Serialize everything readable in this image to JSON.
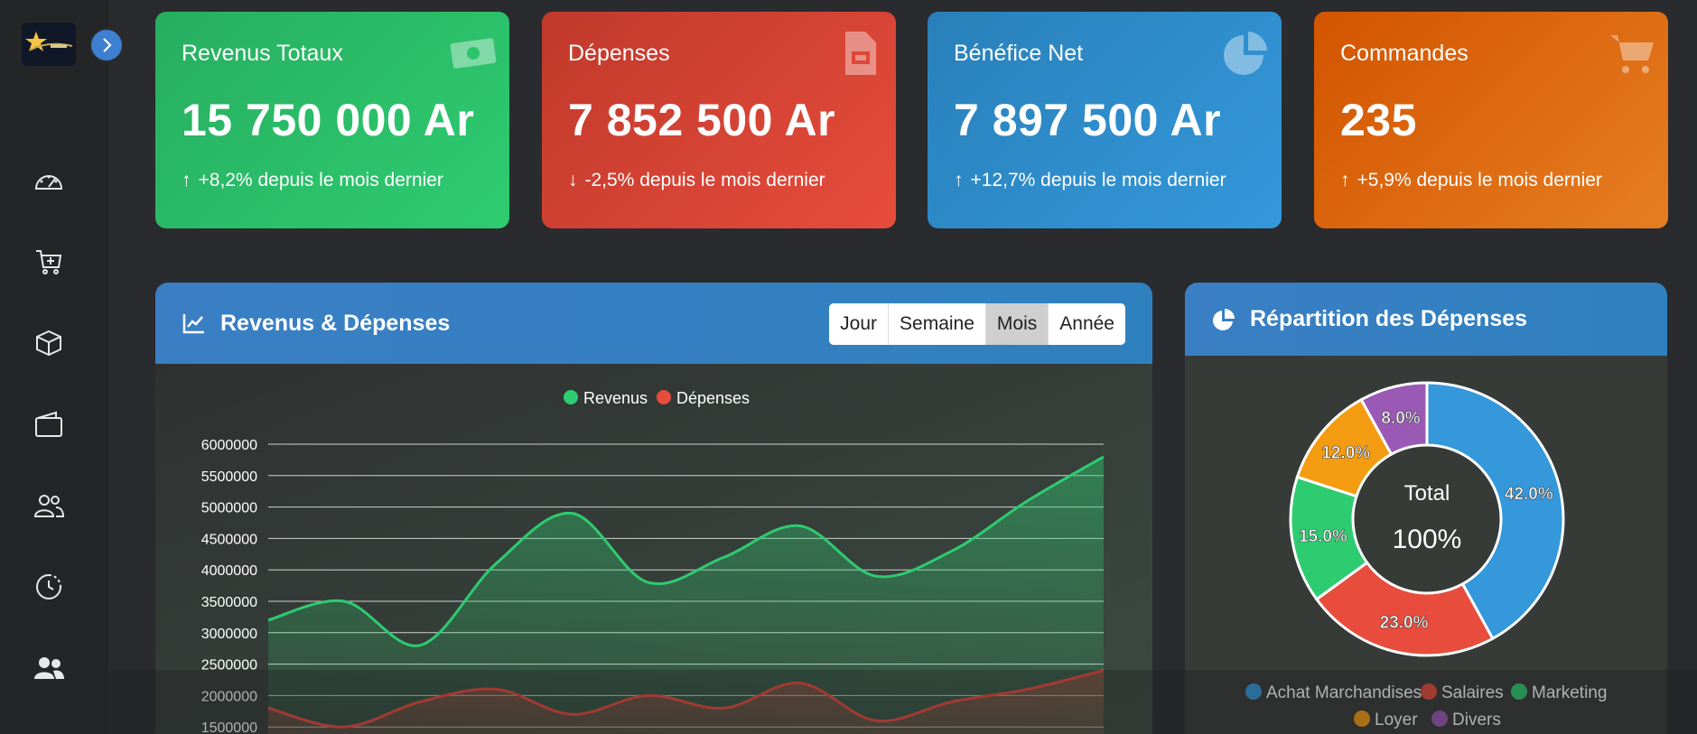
{
  "stats": [
    {
      "title": "Revenus Totaux",
      "value": "15 750 000 Ar",
      "arrow": "↑",
      "change": "+8,2% depuis le mois dernier",
      "icon": "money-icon"
    },
    {
      "title": "Dépenses",
      "value": "7 852 500 Ar",
      "arrow": "↓",
      "change": "-2,5% depuis le mois dernier",
      "icon": "invoice-icon"
    },
    {
      "title": "Bénéfice Net",
      "value": "7 897 500 Ar",
      "arrow": "↑",
      "change": "+12,7% depuis le mois dernier",
      "icon": "pie-chart-icon"
    },
    {
      "title": "Commandes",
      "value": "235",
      "arrow": "↑",
      "change": "+5,9% depuis le mois dernier",
      "icon": "cart-icon"
    }
  ],
  "sidebar": {
    "items": [
      "dashboard-icon",
      "cart-add-icon",
      "box-icon",
      "wallet-icon",
      "users-icon",
      "history-icon",
      "team-icon"
    ]
  },
  "revenue_panel": {
    "title": "Revenus & Dépenses",
    "periods": [
      "Jour",
      "Semaine",
      "Mois",
      "Année"
    ],
    "active_period": "Mois"
  },
  "expense_panel": {
    "title": "Répartition des Dépenses",
    "center_label": "Total",
    "center_value": "100%"
  },
  "colors": {
    "revenue": "#2ecc71",
    "expense": "#e74c3c"
  },
  "chart_data": [
    {
      "type": "area",
      "legend": [
        "Revenus",
        "Dépenses"
      ],
      "y_ticks": [
        "6000000",
        "5500000",
        "5000000",
        "4500000",
        "4000000",
        "3500000",
        "3000000",
        "2500000",
        "2000000",
        "1500000"
      ],
      "ylim": [
        1500000,
        6000000
      ],
      "series": [
        {
          "name": "Revenus",
          "color": "#2ecc71",
          "values": [
            3200000,
            3500000,
            2800000,
            4100000,
            4900000,
            3800000,
            4200000,
            4700000,
            3900000,
            4300000,
            5100000,
            5800000
          ]
        },
        {
          "name": "Dépenses",
          "color": "#e74c3c",
          "values": [
            1800000,
            1500000,
            1900000,
            2100000,
            1700000,
            2000000,
            1800000,
            2200000,
            1600000,
            1900000,
            2100000,
            2400000
          ]
        }
      ]
    },
    {
      "type": "pie",
      "legend": [
        "Achat Marchandises",
        "Salaires",
        "Marketing",
        "Loyer",
        "Divers"
      ],
      "values": [
        42.0,
        23.0,
        15.0,
        12.0,
        8.0
      ],
      "labels": [
        "42.0%",
        "23.0%",
        "15.0%",
        "12.0%",
        "8.0%"
      ],
      "colors": [
        "#3498db",
        "#e74c3c",
        "#2ecc71",
        "#f39c12",
        "#9b59b6"
      ]
    }
  ]
}
